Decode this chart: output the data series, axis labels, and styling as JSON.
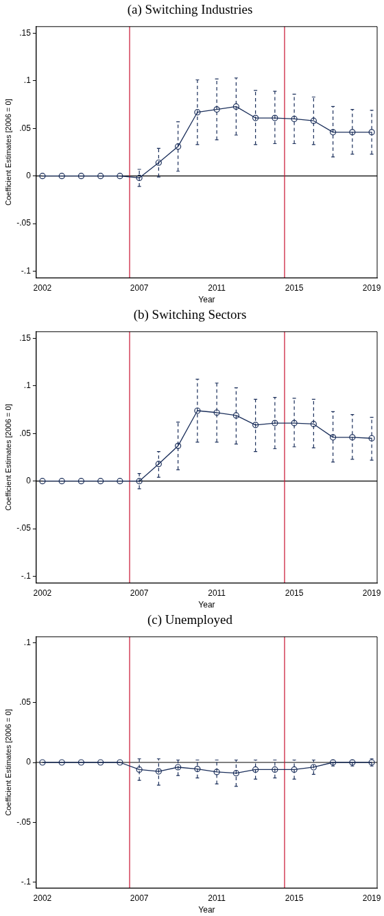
{
  "chart_data": [
    {
      "type": "line",
      "title": "(a) Switching Industries",
      "xlabel": "Year",
      "ylabel": "Coefficient Estimates [2006 = 0]",
      "x": [
        2002,
        2003,
        2004,
        2005,
        2006,
        2007,
        2008,
        2009,
        2010,
        2011,
        2012,
        2013,
        2014,
        2015,
        2016,
        2017,
        2018,
        2019
      ],
      "series": [
        {
          "color": "#1a2e5a",
          "values": [
            0,
            0,
            0,
            0,
            0,
            -0.002,
            0.014,
            0.031,
            0.067,
            0.07,
            0.073,
            0.061,
            0.061,
            0.06,
            0.058,
            0.046,
            0.046,
            0.046
          ],
          "errors": [
            null,
            null,
            null,
            null,
            null,
            [
              -0.011,
              0.007
            ],
            [
              -0.001,
              0.029
            ],
            [
              0.005,
              0.057
            ],
            [
              0.033,
              0.101
            ],
            [
              0.038,
              0.102
            ],
            [
              0.043,
              0.103
            ],
            [
              0.033,
              0.09
            ],
            [
              0.034,
              0.089
            ],
            [
              0.034,
              0.086
            ],
            [
              0.033,
              0.083
            ],
            [
              0.02,
              0.073
            ],
            [
              0.023,
              0.07
            ],
            [
              0.023,
              0.069
            ]
          ]
        }
      ],
      "xlim": [
        2001.68,
        2019.28
      ],
      "xticks": [
        2002,
        2007,
        2011,
        2015,
        2019
      ],
      "ylim": [
        -0.107,
        0.157
      ],
      "yticks": [
        {
          "value": -0.1,
          "label": "-.1"
        },
        {
          "value": -0.05,
          "label": "-.05"
        },
        {
          "value": 0,
          "label": "0"
        },
        {
          "value": 0.05,
          "label": ".05"
        },
        {
          "value": 0.1,
          "label": ".1"
        },
        {
          "value": 0.15,
          "label": ".15"
        }
      ],
      "ref_lines": [
        {
          "axis": "y",
          "value": 0,
          "color": "#000000"
        },
        {
          "axis": "x",
          "value": 2006.5,
          "color": "#c8102e"
        },
        {
          "axis": "x",
          "value": 2014.5,
          "color": "#c8102e"
        }
      ],
      "grid": false,
      "marker": "circle",
      "line_style": "solid"
    },
    {
      "type": "line",
      "title": "(b) Switching Sectors",
      "xlabel": "Year",
      "ylabel": "Coefficient Estimates [2006 = 0]",
      "x": [
        2002,
        2003,
        2004,
        2005,
        2006,
        2007,
        2008,
        2009,
        2010,
        2011,
        2012,
        2013,
        2014,
        2015,
        2016,
        2017,
        2018,
        2019
      ],
      "series": [
        {
          "color": "#1a2e5a",
          "values": [
            0,
            0,
            0,
            0,
            0,
            0,
            0.018,
            0.037,
            0.074,
            0.072,
            0.069,
            0.059,
            0.061,
            0.061,
            0.06,
            0.046,
            0.046,
            0.045
          ],
          "errors": [
            null,
            null,
            null,
            null,
            null,
            [
              -0.008,
              0.008
            ],
            [
              0.004,
              0.031
            ],
            [
              0.012,
              0.062
            ],
            [
              0.041,
              0.107
            ],
            [
              0.041,
              0.103
            ],
            [
              0.039,
              0.098
            ],
            [
              0.031,
              0.086
            ],
            [
              0.034,
              0.088
            ],
            [
              0.036,
              0.087
            ],
            [
              0.035,
              0.086
            ],
            [
              0.02,
              0.073
            ],
            [
              0.023,
              0.07
            ],
            [
              0.022,
              0.067
            ]
          ]
        }
      ],
      "xlim": [
        2001.68,
        2019.28
      ],
      "xticks": [
        2002,
        2007,
        2011,
        2015,
        2019
      ],
      "ylim": [
        -0.107,
        0.157
      ],
      "yticks": [
        {
          "value": -0.1,
          "label": "-.1"
        },
        {
          "value": -0.05,
          "label": "-.05"
        },
        {
          "value": 0,
          "label": "0"
        },
        {
          "value": 0.05,
          "label": ".05"
        },
        {
          "value": 0.1,
          "label": ".1"
        },
        {
          "value": 0.15,
          "label": ".15"
        }
      ],
      "ref_lines": [
        {
          "axis": "y",
          "value": 0,
          "color": "#000000"
        },
        {
          "axis": "x",
          "value": 2006.5,
          "color": "#c8102e"
        },
        {
          "axis": "x",
          "value": 2014.5,
          "color": "#c8102e"
        }
      ],
      "grid": false,
      "marker": "circle",
      "line_style": "solid"
    },
    {
      "type": "line",
      "title": "(c) Unemployed",
      "xlabel": "Year",
      "ylabel": "Coefficient Estimates [2006 = 0]",
      "x": [
        2002,
        2003,
        2004,
        2005,
        2006,
        2007,
        2008,
        2009,
        2010,
        2011,
        2012,
        2013,
        2014,
        2015,
        2016,
        2017,
        2018,
        2019
      ],
      "series": [
        {
          "color": "#1a2e5a",
          "values": [
            0,
            0,
            0,
            0,
            0,
            -0.006,
            -0.0075,
            -0.004,
            -0.0055,
            -0.008,
            -0.009,
            -0.006,
            -0.006,
            -0.006,
            -0.004,
            0,
            0,
            0
          ],
          "errors": [
            null,
            null,
            null,
            null,
            null,
            [
              -0.015,
              0.003
            ],
            [
              -0.019,
              0.003
            ],
            [
              -0.011,
              0.002
            ],
            [
              -0.013,
              0.002
            ],
            [
              -0.018,
              0.002
            ],
            [
              -0.02,
              0.002
            ],
            [
              -0.014,
              0.002
            ],
            [
              -0.013,
              0.002
            ],
            [
              -0.014,
              0.002
            ],
            [
              -0.01,
              0.002
            ],
            [
              -0.003,
              0.002
            ],
            [
              -0.003,
              0.002
            ],
            [
              -0.003,
              0.003
            ]
          ]
        }
      ],
      "xlim": [
        2001.68,
        2019.28
      ],
      "xticks": [
        2002,
        2007,
        2011,
        2015,
        2019
      ],
      "ylim": [
        -0.105,
        0.105
      ],
      "yticks": [
        {
          "value": -0.1,
          "label": "-.1"
        },
        {
          "value": -0.05,
          "label": "-.05"
        },
        {
          "value": 0,
          "label": "0"
        },
        {
          "value": 0.05,
          "label": ".05"
        },
        {
          "value": 0.1,
          "label": ".1"
        }
      ],
      "ref_lines": [
        {
          "axis": "y",
          "value": 0,
          "color": "#000000"
        },
        {
          "axis": "x",
          "value": 2006.5,
          "color": "#c8102e"
        },
        {
          "axis": "x",
          "value": 2014.5,
          "color": "#c8102e"
        }
      ],
      "grid": false,
      "marker": "circle",
      "line_style": "solid"
    }
  ]
}
